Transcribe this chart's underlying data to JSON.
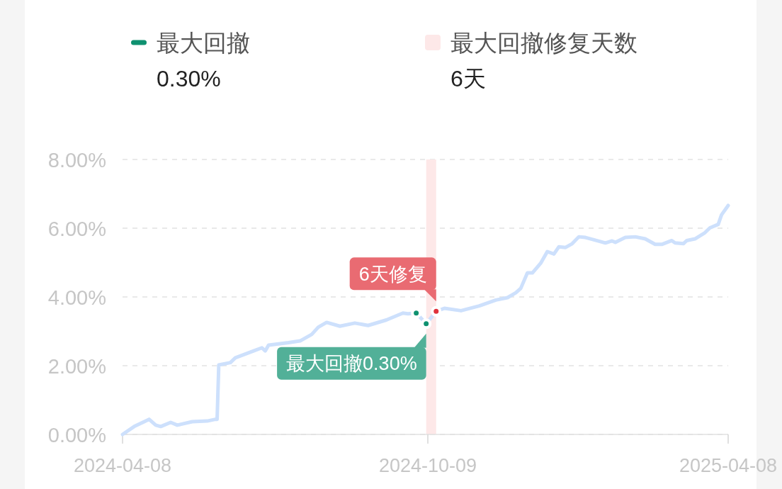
{
  "chart_data": {
    "type": "line",
    "x": [
      "2024-04-08",
      "2024-04-15",
      "2024-04-24",
      "2024-04-28",
      "2024-05-01",
      "2024-05-07",
      "2024-05-11",
      "2024-05-20",
      "2024-05-29",
      "2024-06-03",
      "2024-06-04",
      "2024-06-05",
      "2024-06-12",
      "2024-06-15",
      "2024-06-26",
      "2024-07-01",
      "2024-07-03",
      "2024-07-05",
      "2024-07-17",
      "2024-07-24",
      "2024-07-31",
      "2024-08-04",
      "2024-08-09",
      "2024-08-17",
      "2024-08-26",
      "2024-09-03",
      "2024-09-14",
      "2024-09-24",
      "2024-09-27",
      "2024-10-02",
      "2024-10-08",
      "2024-10-14",
      "2024-10-19",
      "2024-10-29",
      "2024-11-09",
      "2024-11-19",
      "2024-11-26",
      "2024-12-01",
      "2024-12-04",
      "2024-12-08",
      "2024-12-11",
      "2024-12-16",
      "2024-12-20",
      "2024-12-24",
      "2024-12-27",
      "2024-12-31",
      "2025-01-04",
      "2025-01-08",
      "2025-01-12",
      "2025-01-21",
      "2025-01-24",
      "2025-01-28",
      "2025-01-30",
      "2025-02-05",
      "2025-02-11",
      "2025-02-17",
      "2025-02-23",
      "2025-02-27",
      "2025-03-05",
      "2025-03-07",
      "2025-03-12",
      "2025-03-14",
      "2025-03-19",
      "2025-03-25",
      "2025-03-28",
      "2025-04-02",
      "2025-04-04",
      "2025-04-08"
    ],
    "series": [
      {
        "color": "#cde0fc",
        "values": [
          0.0,
          0.23,
          0.44,
          0.27,
          0.23,
          0.35,
          0.27,
          0.37,
          0.39,
          0.44,
          0.44,
          2.02,
          2.09,
          2.23,
          2.43,
          2.52,
          2.43,
          2.6,
          2.67,
          2.72,
          2.91,
          3.12,
          3.26,
          3.15,
          3.24,
          3.17,
          3.33,
          3.53,
          3.51,
          3.53,
          3.22,
          3.58,
          3.67,
          3.6,
          3.74,
          3.91,
          3.98,
          4.12,
          4.25,
          4.7,
          4.7,
          4.98,
          5.32,
          5.25,
          5.46,
          5.44,
          5.55,
          5.75,
          5.73,
          5.61,
          5.57,
          5.63,
          5.59,
          5.73,
          5.75,
          5.69,
          5.53,
          5.53,
          5.64,
          5.57,
          5.55,
          5.64,
          5.69,
          5.87,
          6.01,
          6.11,
          6.39,
          6.66
        ]
      },
      {
        "type": "scatter",
        "name": "最大回撤",
        "color": "#0f9170",
        "marker": "circle",
        "x": [
          "2024-10-02",
          "2024-10-08"
        ],
        "values": [
          3.53,
          3.22
        ]
      },
      {
        "type": "scatter",
        "color": "#e0313b",
        "marker": "circle",
        "x": [
          "2024-10-14"
        ],
        "values": [
          3.58
        ]
      }
    ],
    "xlim": [
      "2024-04-08",
      "2025-04-08"
    ],
    "xticks": [
      "2024-04-08",
      "2024-10-09",
      "2025-04-08"
    ],
    "ylim": [
      0,
      8
    ],
    "yticks": [
      {
        "value": 0,
        "label": "0.00%"
      },
      {
        "value": 2,
        "label": "2.00%"
      },
      {
        "value": 4,
        "label": "4.00%"
      },
      {
        "value": 6,
        "label": "6.00%"
      },
      {
        "value": 8,
        "label": "8.00%"
      }
    ],
    "grid": "y",
    "legend": "top",
    "bands": [
      {
        "axis": "x",
        "from": "2024-10-08",
        "to": "2024-10-14",
        "label": "最大回撤修复天数",
        "color": "#fde8e8"
      }
    ],
    "annotations": [
      "0.30%",
      "6天",
      {
        "text": "最大回撤0.30%",
        "x": "2024-10-08",
        "y": 3.22
      },
      {
        "text": "6天修复",
        "x": "2024-10-14",
        "y": 3.58
      }
    ]
  }
}
